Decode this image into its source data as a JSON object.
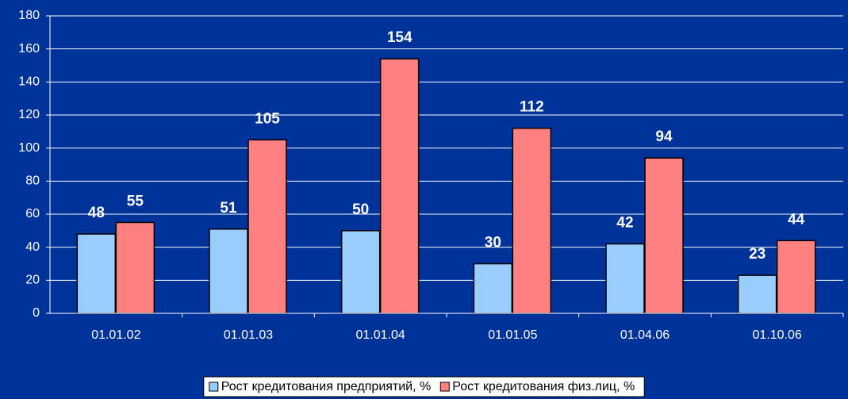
{
  "chart_data": {
    "type": "bar",
    "categories": [
      "01.01.02",
      "01.01.03",
      "01.01.04",
      "01.01.05",
      "01.04.06",
      "01.10.06"
    ],
    "series": [
      {
        "name": "Рост кредитования предприятий, %",
        "color": "#99ccff",
        "values": [
          48,
          51,
          50,
          30,
          42,
          23
        ]
      },
      {
        "name": "Рост кредитования физ.лиц, %",
        "color": "#ff8080",
        "values": [
          55,
          105,
          154,
          112,
          94,
          44
        ]
      }
    ],
    "ylim": [
      0,
      180
    ],
    "yticks": [
      0,
      20,
      40,
      60,
      80,
      100,
      120,
      140,
      160,
      180
    ],
    "grid": true,
    "legend": "bottom"
  }
}
